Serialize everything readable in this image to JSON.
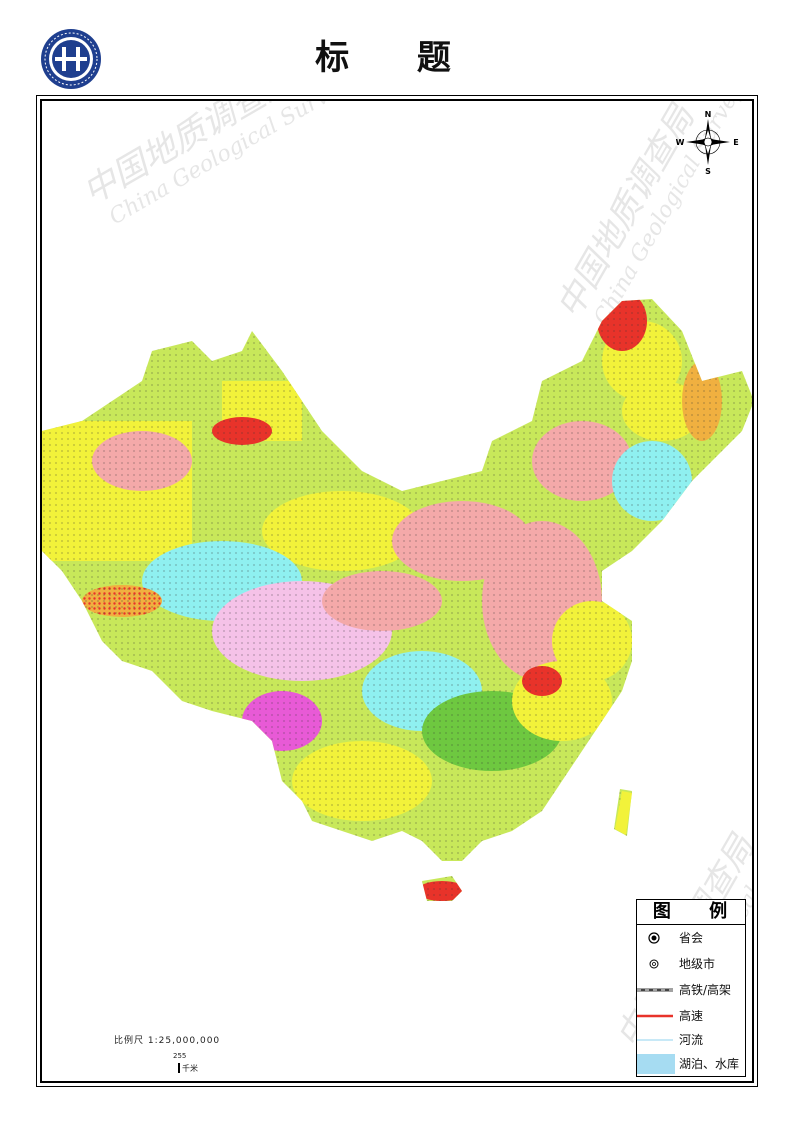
{
  "page": {
    "title": "标 题"
  },
  "watermarks": [
    {
      "cn": "中国地质调查局",
      "en": "China Geological Survey"
    },
    {
      "cn": "中国地质调查局",
      "en": "China Geological Survey"
    },
    {
      "cn": "中国地质调查局",
      "en": "China Geological Survey"
    }
  ],
  "compass": {
    "n": "N",
    "s": "S",
    "e": "E",
    "w": "W"
  },
  "legend": {
    "title": "图 例",
    "items": [
      {
        "label": "省会",
        "symbol": "provincial-capital"
      },
      {
        "label": "地级市",
        "symbol": "prefecture-city"
      },
      {
        "label": "高铁/高架",
        "symbol": "high-speed-rail"
      },
      {
        "label": "高速",
        "symbol": "expressway"
      },
      {
        "label": "河流",
        "symbol": "river"
      },
      {
        "label": "湖泊、水库",
        "symbol": "lake"
      }
    ]
  },
  "scale": {
    "ratio_text": "比例尺 1:25,000,000",
    "bar_value": "255",
    "unit": "千米"
  },
  "colors": {
    "pink": "#f4a9a9",
    "yellow": "#f2f23a",
    "lime": "#c8e85a",
    "red": "#e8332a",
    "magenta": "#e85ad6",
    "cyan": "#8ff0f0",
    "lightpink": "#f5c2e8",
    "green": "#6ec840",
    "orange": "#f0b040",
    "lake": "#a6dcf2",
    "logo_blue": "#1f3f8f"
  }
}
